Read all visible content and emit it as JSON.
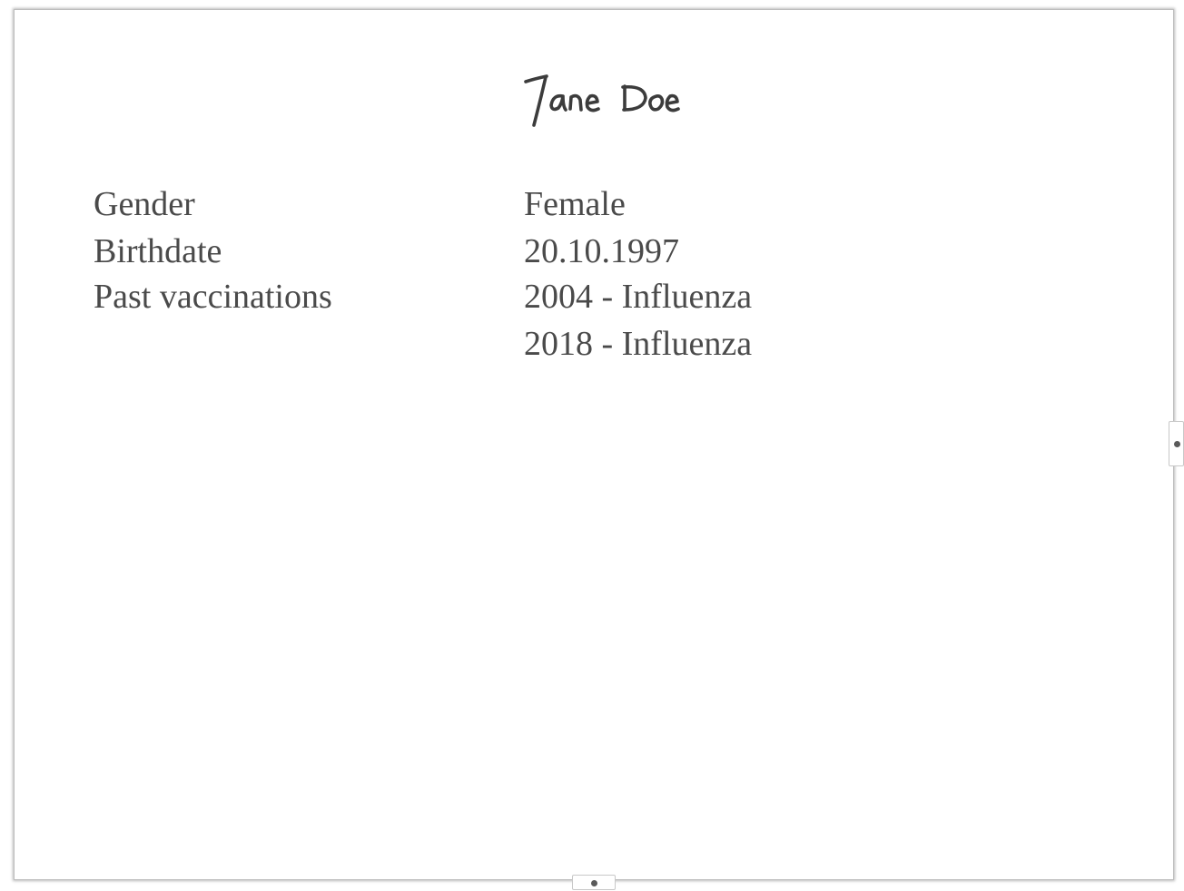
{
  "document": {
    "title": "Jane Doe",
    "fields": [
      {
        "label": "Gender",
        "values": [
          "Female"
        ]
      },
      {
        "label": "Birthdate",
        "values": [
          "20.10.1997"
        ]
      },
      {
        "label": "Past vaccinations",
        "values": [
          "2004 - Influenza",
          "2018 - Influenza"
        ]
      }
    ]
  },
  "colors": {
    "text": "#4a4a4a",
    "page_border": "#bdbdbd",
    "handle_dot": "#5a5a5a"
  },
  "icons": {
    "right_handle": "resize-handle-icon",
    "bottom_handle": "resize-handle-icon"
  }
}
